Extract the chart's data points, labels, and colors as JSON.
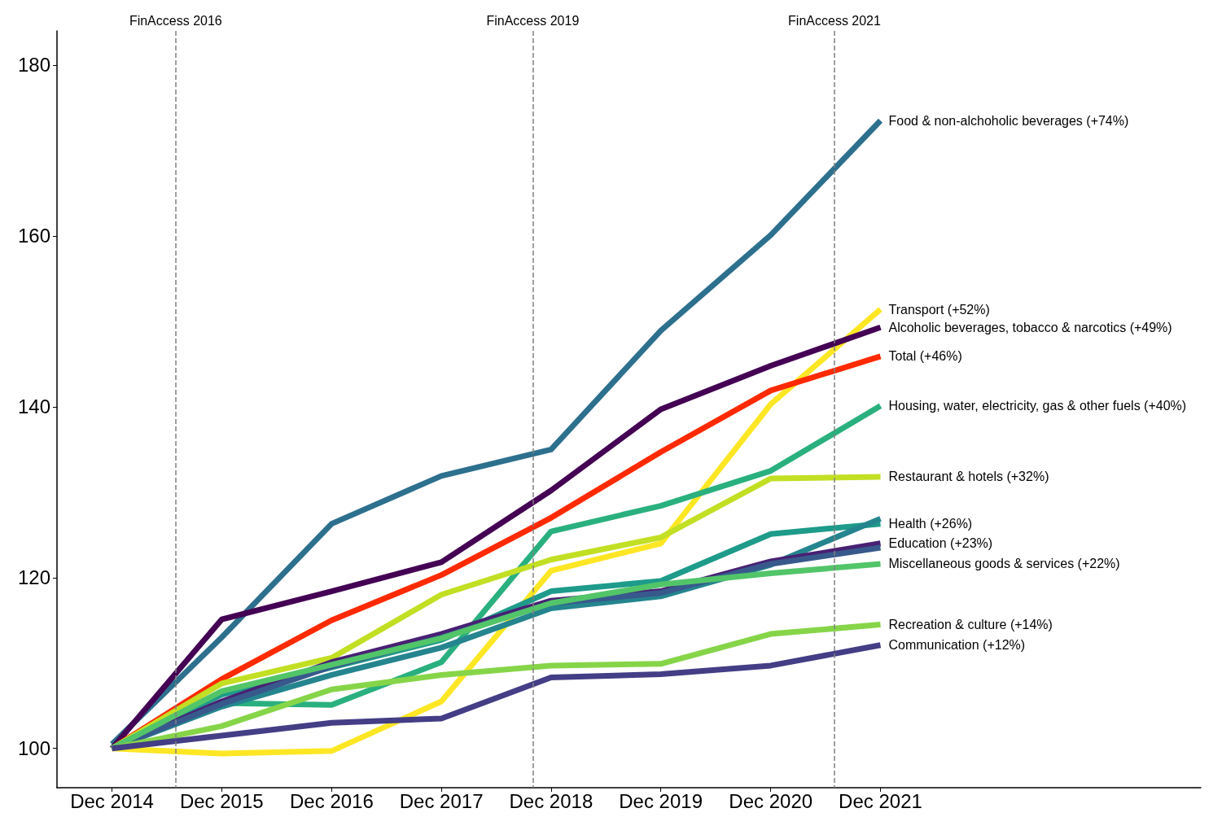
{
  "chart_data": {
    "type": "line",
    "x": [
      "2014-12",
      "2015-12",
      "2016-12",
      "2017-12",
      "2018-12",
      "2019-12",
      "2020-12",
      "2021-12"
    ],
    "xlim": [
      "2014-06",
      "2024-11"
    ],
    "xticks": [
      {
        "value": "2014-12",
        "label": "Dec 2014"
      },
      {
        "value": "2015-12",
        "label": "Dec 2015"
      },
      {
        "value": "2016-12",
        "label": "Dec 2016"
      },
      {
        "value": "2017-12",
        "label": "Dec 2017"
      },
      {
        "value": "2018-12",
        "label": "Dec 2018"
      },
      {
        "value": "2019-12",
        "label": "Dec 2019"
      },
      {
        "value": "2020-12",
        "label": "Dec 2020"
      },
      {
        "value": "2021-12",
        "label": "Dec 2021"
      }
    ],
    "ylim": [
      95.4,
      184
    ],
    "yticks": [
      100,
      120,
      140,
      160,
      180
    ],
    "grid": false,
    "legend": false,
    "marker": "none",
    "line_style": "solid",
    "series": [
      {
        "name": "Food & non-alchoholic beverages (+74%)",
        "color": "#2d708e",
        "values": [
          100.5,
          113,
          126.3,
          131.9,
          135,
          148.9,
          160.1,
          173.5
        ]
      },
      {
        "name": "Transport (+52%)",
        "color": "#fde725",
        "values": [
          100,
          99.4,
          99.7,
          105.5,
          120.8,
          124,
          140.3,
          151.4
        ]
      },
      {
        "name": "Alcoholic beverages, tobacco & narcotics (+49%)",
        "color": "#440154",
        "values": [
          100,
          115.1,
          118.4,
          121.8,
          130.2,
          139.7,
          144.8,
          149.3
        ]
      },
      {
        "name": "Total (+46%)",
        "color": "#ff2a00",
        "values": [
          100,
          108.1,
          115,
          120.3,
          127,
          134.7,
          141.9,
          145.9
        ]
      },
      {
        "name": "Housing, water, electricity, gas & other fuels (+40%)",
        "color": "#2ab07f",
        "values": [
          100,
          105.3,
          105.1,
          110.1,
          125.4,
          128.4,
          132.5,
          140.1
        ]
      },
      {
        "name": "Restaurant & hotels (+32%)",
        "color": "#c2df23",
        "values": [
          100,
          107.6,
          110.6,
          118,
          122.1,
          124.7,
          131.6,
          131.8
        ]
      },
      {
        "name": "Health (+26%)",
        "color": "#1e9b8a",
        "values": [
          100,
          106.3,
          109.5,
          112.7,
          118.4,
          119.6,
          125.1,
          126.3
        ]
      },
      {
        "color": "#25858e",
        "values": [
          100,
          104.9,
          108.6,
          111.8,
          116.4,
          117.8,
          121.5,
          126.9
        ]
      },
      {
        "name": "Education (+23%)",
        "color": "#482173",
        "values": [
          100,
          105.5,
          110.1,
          113.4,
          117.3,
          118.4,
          121.9,
          124
        ]
      },
      {
        "color": "#38598c",
        "values": [
          100,
          105.2,
          109.6,
          113,
          117,
          118.2,
          121.6,
          123.5
        ]
      },
      {
        "name": "Miscellaneous goods & services (+22%)",
        "color": "#52c569",
        "values": [
          100,
          106.7,
          109.8,
          112.9,
          117,
          119.2,
          120.5,
          121.6
        ]
      },
      {
        "name": "Recreation & culture (+14%)",
        "color": "#86d549",
        "values": [
          100,
          102.6,
          106.9,
          108.6,
          109.7,
          109.9,
          113.4,
          114.5
        ]
      },
      {
        "name": "Communication (+12%)",
        "color": "#433e85",
        "values": [
          100,
          101.5,
          103,
          103.5,
          108.3,
          108.7,
          109.7,
          112.1
        ]
      }
    ],
    "ref_lines": [
      {
        "axis": "x",
        "value": "2015-07",
        "label": "FinAccess 2016",
        "color": "#808080",
        "line_style": "dashed"
      },
      {
        "axis": "x",
        "value": "2018-10",
        "label": "FinAccess 2019",
        "color": "#808080",
        "line_style": "dashed"
      },
      {
        "axis": "x",
        "value": "2021-07",
        "label": "FinAccess 2021",
        "color": "#808080",
        "line_style": "dashed"
      }
    ]
  }
}
